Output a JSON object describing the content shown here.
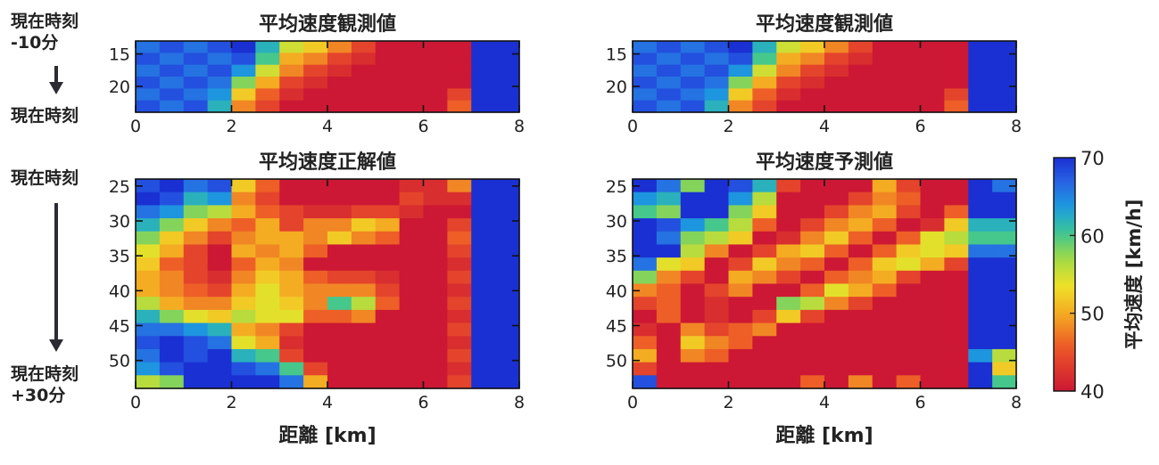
{
  "left_labels": {
    "top_now_minus_line1": "現在時刻",
    "top_now_minus_line2": "-10分",
    "top_now": "現在時刻",
    "bottom_now": "現在時刻",
    "bottom_plus_line1": "現在時刻",
    "bottom_plus_line2": "+30分"
  },
  "chart_data": [
    {
      "type": "heatmap",
      "title": "平均速度観測値",
      "xlabel": "",
      "x_range": [
        0,
        8
      ],
      "x_ticks": [
        0,
        2,
        4,
        6,
        8
      ],
      "y_ticks": [
        15,
        20
      ],
      "y_range": [
        13,
        24
      ],
      "rows": [
        "13-15",
        "15-17",
        "17-19",
        "19-21",
        "21-23",
        "23-24"
      ],
      "x_bins": 16,
      "values": [
        [
          66,
          68,
          66,
          68,
          70,
          62,
          55,
          52,
          48,
          44,
          40,
          40,
          40,
          40,
          70,
          70
        ],
        [
          68,
          66,
          68,
          66,
          68,
          60,
          50,
          48,
          44,
          42,
          40,
          40,
          40,
          40,
          70,
          70
        ],
        [
          66,
          68,
          66,
          68,
          64,
          55,
          48,
          44,
          42,
          40,
          40,
          40,
          40,
          40,
          70,
          70
        ],
        [
          68,
          66,
          68,
          66,
          58,
          50,
          44,
          42,
          40,
          40,
          40,
          40,
          40,
          40,
          70,
          70
        ],
        [
          66,
          68,
          66,
          64,
          52,
          46,
          42,
          40,
          40,
          40,
          40,
          40,
          40,
          44,
          70,
          70
        ],
        [
          68,
          66,
          68,
          62,
          48,
          44,
          40,
          40,
          40,
          40,
          40,
          40,
          40,
          46,
          70,
          70
        ]
      ]
    },
    {
      "type": "heatmap",
      "title": "平均速度観測値",
      "xlabel": "",
      "x_range": [
        0,
        8
      ],
      "x_ticks": [
        0,
        2,
        4,
        6,
        8
      ],
      "y_ticks": [
        15,
        20
      ],
      "y_range": [
        13,
        24
      ],
      "rows": [
        "13-15",
        "15-17",
        "17-19",
        "19-21",
        "21-23",
        "23-24"
      ],
      "x_bins": 16,
      "values": [
        [
          66,
          68,
          66,
          68,
          70,
          62,
          55,
          52,
          48,
          44,
          40,
          40,
          40,
          40,
          70,
          70
        ],
        [
          68,
          66,
          68,
          66,
          68,
          60,
          50,
          48,
          44,
          42,
          40,
          40,
          40,
          40,
          70,
          70
        ],
        [
          66,
          68,
          66,
          68,
          64,
          55,
          48,
          44,
          42,
          40,
          40,
          40,
          40,
          40,
          70,
          70
        ],
        [
          68,
          66,
          68,
          66,
          58,
          50,
          44,
          42,
          40,
          40,
          40,
          40,
          40,
          40,
          70,
          70
        ],
        [
          66,
          68,
          66,
          64,
          52,
          46,
          42,
          40,
          40,
          40,
          40,
          40,
          40,
          44,
          70,
          70
        ],
        [
          68,
          66,
          68,
          62,
          48,
          44,
          40,
          40,
          40,
          40,
          40,
          40,
          40,
          46,
          70,
          70
        ]
      ]
    },
    {
      "type": "heatmap",
      "title": "平均速度正解値",
      "xlabel": "距離 [km]",
      "x_range": [
        0,
        8
      ],
      "x_ticks": [
        0,
        2,
        4,
        6,
        8
      ],
      "y_ticks": [
        25,
        30,
        35,
        40,
        45,
        50
      ],
      "y_range": [
        24,
        54
      ],
      "x_bins": 16,
      "values": [
        [
          68,
          70,
          66,
          68,
          52,
          46,
          40,
          40,
          40,
          40,
          40,
          42,
          42,
          48,
          70,
          70
        ],
        [
          70,
          68,
          62,
          64,
          48,
          44,
          40,
          40,
          40,
          40,
          40,
          44,
          42,
          42,
          70,
          70
        ],
        [
          66,
          64,
          58,
          56,
          50,
          46,
          44,
          42,
          42,
          44,
          44,
          42,
          40,
          40,
          70,
          70
        ],
        [
          62,
          58,
          52,
          48,
          46,
          50,
          44,
          48,
          48,
          52,
          50,
          40,
          40,
          44,
          70,
          70
        ],
        [
          58,
          52,
          48,
          44,
          48,
          50,
          50,
          48,
          52,
          48,
          46,
          40,
          40,
          46,
          70,
          70
        ],
        [
          54,
          50,
          44,
          40,
          50,
          48,
          50,
          46,
          40,
          40,
          40,
          40,
          40,
          44,
          70,
          70
        ],
        [
          52,
          46,
          44,
          40,
          46,
          50,
          48,
          40,
          40,
          40,
          40,
          40,
          40,
          42,
          70,
          70
        ],
        [
          50,
          48,
          44,
          42,
          48,
          52,
          50,
          46,
          44,
          44,
          42,
          40,
          40,
          44,
          70,
          70
        ],
        [
          50,
          48,
          46,
          44,
          50,
          54,
          50,
          48,
          48,
          48,
          44,
          40,
          40,
          42,
          70,
          70
        ],
        [
          56,
          50,
          48,
          48,
          52,
          54,
          52,
          48,
          60,
          56,
          46,
          40,
          40,
          44,
          70,
          70
        ],
        [
          62,
          58,
          54,
          52,
          56,
          54,
          54,
          46,
          46,
          48,
          40,
          40,
          40,
          42,
          70,
          70
        ],
        [
          66,
          66,
          64,
          62,
          50,
          48,
          44,
          40,
          40,
          40,
          40,
          40,
          40,
          44,
          70,
          70
        ],
        [
          68,
          70,
          68,
          66,
          54,
          50,
          42,
          40,
          40,
          40,
          40,
          40,
          40,
          42,
          70,
          70
        ],
        [
          66,
          70,
          68,
          70,
          62,
          60,
          44,
          40,
          40,
          40,
          40,
          40,
          40,
          44,
          70,
          70
        ],
        [
          64,
          68,
          70,
          70,
          68,
          66,
          60,
          44,
          40,
          40,
          40,
          40,
          40,
          42,
          70,
          70
        ],
        [
          56,
          58,
          70,
          70,
          70,
          70,
          66,
          50,
          40,
          40,
          40,
          40,
          40,
          44,
          70,
          70
        ]
      ]
    },
    {
      "type": "heatmap",
      "title": "平均速度予測値",
      "xlabel": "距離 [km]",
      "x_range": [
        0,
        8
      ],
      "x_ticks": [
        0,
        2,
        4,
        6,
        8
      ],
      "y_ticks": [
        25,
        30,
        35,
        40,
        45,
        50
      ],
      "y_range": [
        24,
        54
      ],
      "x_bins": 16,
      "values": [
        [
          70,
          66,
          58,
          70,
          68,
          62,
          44,
          40,
          40,
          40,
          50,
          44,
          40,
          40,
          70,
          66
        ],
        [
          64,
          62,
          70,
          70,
          64,
          56,
          40,
          40,
          40,
          44,
          48,
          46,
          40,
          40,
          70,
          70
        ],
        [
          60,
          58,
          70,
          70,
          58,
          52,
          40,
          40,
          44,
          48,
          50,
          44,
          40,
          46,
          70,
          70
        ],
        [
          70,
          68,
          64,
          60,
          56,
          46,
          40,
          44,
          48,
          50,
          46,
          40,
          42,
          52,
          62,
          62
        ],
        [
          70,
          66,
          58,
          56,
          52,
          40,
          42,
          48,
          52,
          46,
          40,
          46,
          54,
          56,
          60,
          60
        ],
        [
          70,
          70,
          56,
          48,
          40,
          44,
          50,
          52,
          46,
          40,
          46,
          52,
          54,
          52,
          66,
          66
        ],
        [
          66,
          54,
          52,
          40,
          44,
          52,
          48,
          46,
          40,
          46,
          52,
          54,
          50,
          44,
          70,
          70
        ],
        [
          58,
          48,
          44,
          40,
          50,
          48,
          44,
          40,
          46,
          48,
          50,
          44,
          40,
          40,
          70,
          70
        ],
        [
          48,
          46,
          40,
          44,
          48,
          40,
          40,
          46,
          54,
          50,
          46,
          40,
          40,
          40,
          70,
          70
        ],
        [
          44,
          46,
          40,
          42,
          40,
          40,
          58,
          56,
          48,
          44,
          40,
          40,
          40,
          40,
          70,
          70
        ],
        [
          40,
          46,
          40,
          42,
          40,
          44,
          52,
          44,
          40,
          40,
          40,
          40,
          40,
          40,
          70,
          70
        ],
        [
          42,
          40,
          48,
          44,
          46,
          48,
          40,
          40,
          40,
          40,
          40,
          40,
          40,
          40,
          70,
          70
        ],
        [
          46,
          40,
          52,
          48,
          46,
          40,
          40,
          40,
          40,
          40,
          40,
          40,
          40,
          40,
          70,
          70
        ],
        [
          50,
          40,
          48,
          46,
          40,
          40,
          40,
          40,
          40,
          40,
          40,
          40,
          40,
          40,
          64,
          56
        ],
        [
          44,
          40,
          40,
          40,
          40,
          40,
          40,
          40,
          40,
          40,
          40,
          40,
          40,
          40,
          70,
          52
        ],
        [
          68,
          40,
          40,
          40,
          40,
          40,
          40,
          46,
          40,
          48,
          40,
          46,
          40,
          40,
          70,
          60
        ]
      ]
    }
  ],
  "colorbar": {
    "label": "平均速度 [km/h]",
    "ticks": [
      40,
      50,
      60,
      70
    ],
    "min": 40,
    "max": 70
  }
}
